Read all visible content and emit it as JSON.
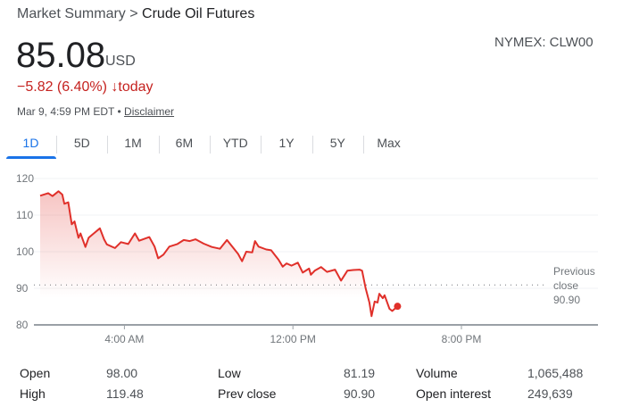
{
  "breadcrumb": {
    "parent": "Market Summary",
    "separator": ">",
    "current": "Crude Oil Futures"
  },
  "quote": {
    "price": "85.08",
    "currency": "USD",
    "exchange_ticker": "NYMEX: CLW00",
    "change": "−5.82 (6.40%)",
    "change_arrow": "↓",
    "change_period": "today",
    "timestamp": "Mar 9, 4:59 PM EDT",
    "bullet": "•",
    "disclaimer": "Disclaimer"
  },
  "tabs": [
    {
      "label": "1D",
      "active": true
    },
    {
      "label": "5D"
    },
    {
      "label": "1M"
    },
    {
      "label": "6M"
    },
    {
      "label": "YTD"
    },
    {
      "label": "1Y"
    },
    {
      "label": "5Y"
    },
    {
      "label": "Max"
    }
  ],
  "colors": {
    "line": "#e0302a",
    "accent": "#1a73e8",
    "negative": "#c5221f"
  },
  "chart_data": {
    "type": "area",
    "title": "",
    "xlabel": "",
    "ylabel": "",
    "ylim": [
      80,
      120
    ],
    "y_ticks": [
      "120",
      "110",
      "100",
      "90",
      "80"
    ],
    "x_ticks": [
      "4:00 AM",
      "12:00 PM",
      "8:00 PM"
    ],
    "grid": true,
    "reference_line": {
      "label_lines": [
        "Previous",
        "close",
        "90.90"
      ],
      "value": 90.9
    },
    "series": [
      {
        "x": [
          "00:00",
          "00:23",
          "00:35",
          "00:52",
          "01:03",
          "01:09",
          "01:20",
          "01:30",
          "01:38",
          "01:49",
          "01:55",
          "02:09",
          "02:18",
          "02:35",
          "02:50",
          "03:02",
          "03:10",
          "03:33",
          "03:50",
          "04:11",
          "04:30",
          "04:42",
          "05:11",
          "05:26",
          "05:36",
          "05:51",
          "06:08",
          "06:31",
          "06:49",
          "07:06",
          "07:23",
          "07:46",
          "08:09",
          "08:32",
          "08:52",
          "09:07",
          "09:24",
          "09:35",
          "09:47",
          "10:04",
          "10:12",
          "10:22",
          "10:44",
          "10:58",
          "11:19",
          "11:31",
          "11:42",
          "11:56",
          "12:14",
          "12:28",
          "12:46",
          "12:51",
          "13:02",
          "13:20",
          "13:37",
          "14:00",
          "14:17",
          "14:35",
          "14:52",
          "15:10",
          "15:17",
          "15:27",
          "15:38",
          "15:44",
          "15:53",
          "16:01",
          "16:06",
          "16:16",
          "16:21",
          "16:35",
          "16:43",
          "16:58"
        ],
        "y": [
          115.3,
          116,
          115.2,
          116.5,
          115.6,
          113.1,
          113.5,
          107.5,
          108.3,
          103.8,
          105,
          101.3,
          103.8,
          105.2,
          106.4,
          103.4,
          102,
          101,
          102.6,
          102.1,
          105,
          103,
          104,
          101.4,
          98.2,
          99.2,
          101.4,
          102.1,
          103.2,
          102.9,
          103.4,
          102.2,
          101.3,
          100.8,
          103.2,
          101.4,
          99.4,
          97.4,
          100,
          99.8,
          102.9,
          101.4,
          100.6,
          100.4,
          97.8,
          95.9,
          96.8,
          96.2,
          97,
          94.3,
          95.4,
          93.7,
          94.8,
          95.8,
          94.5,
          95.1,
          92.1,
          94.8,
          95,
          95.1,
          94.8,
          90.1,
          86.1,
          82.4,
          86.4,
          86.1,
          88.5,
          87.3,
          88.1,
          84.4,
          83.8,
          85.08
        ]
      }
    ]
  },
  "stats": [
    [
      {
        "label": "Open",
        "value": "98.00"
      },
      {
        "label": "Low",
        "value": "81.19"
      },
      {
        "label": "Volume",
        "value": "1,065,488"
      }
    ],
    [
      {
        "label": "High",
        "value": "119.48"
      },
      {
        "label": "Prev close",
        "value": "90.90"
      },
      {
        "label": "Open interest",
        "value": "249,639"
      }
    ]
  ]
}
